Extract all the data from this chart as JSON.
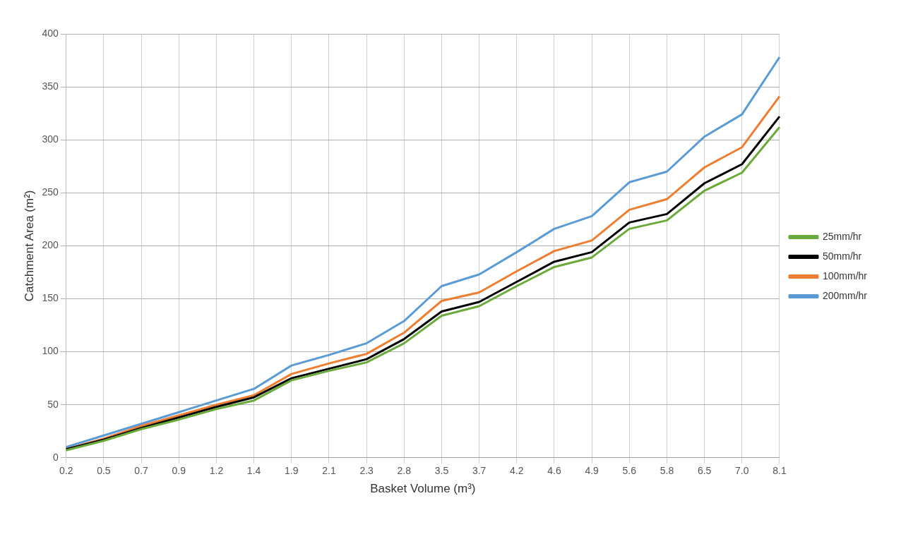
{
  "chart_data": {
    "type": "line",
    "xlabel": "Basket Volume (m³)",
    "ylabel": "Catchment Area (m²)",
    "categories": [
      "0.2",
      "0.5",
      "0.7",
      "0.9",
      "1.2",
      "1.4",
      "1.9",
      "2.1",
      "2.3",
      "2.8",
      "3.5",
      "3.7",
      "4.2",
      "4.6",
      "4.9",
      "5.6",
      "5.8",
      "6.5",
      "7.0",
      "8.1"
    ],
    "series": [
      {
        "name": "25mm/hr",
        "color": "#6aaa3a",
        "values": [
          7,
          16,
          27,
          36,
          46,
          54,
          73,
          82,
          90,
          108,
          134,
          143,
          162,
          180,
          189,
          216,
          224,
          252,
          269,
          312
        ]
      },
      {
        "name": "50mm/hr",
        "color": "#000000",
        "values": [
          8,
          17,
          28,
          38,
          48,
          57,
          75,
          84,
          93,
          112,
          138,
          147,
          166,
          185,
          194,
          222,
          230,
          259,
          277,
          322
        ]
      },
      {
        "name": "100mm/hr",
        "color": "#ed7d31",
        "values": [
          8,
          18,
          30,
          40,
          50,
          59,
          79,
          89,
          98,
          118,
          148,
          156,
          176,
          195,
          205,
          234,
          244,
          274,
          293,
          341
        ]
      },
      {
        "name": "200mm/hr",
        "color": "#5b9bd5",
        "values": [
          10,
          21,
          32,
          43,
          54,
          65,
          87,
          97,
          108,
          129,
          162,
          173,
          194,
          216,
          228,
          260,
          270,
          303,
          324,
          378
        ]
      }
    ],
    "ylim": [
      0,
      400
    ],
    "yticks": [
      0,
      50,
      100,
      150,
      200,
      250,
      300,
      350,
      400
    ],
    "grid": true,
    "legend": "right",
    "marker": "none",
    "line_style": "solid"
  }
}
